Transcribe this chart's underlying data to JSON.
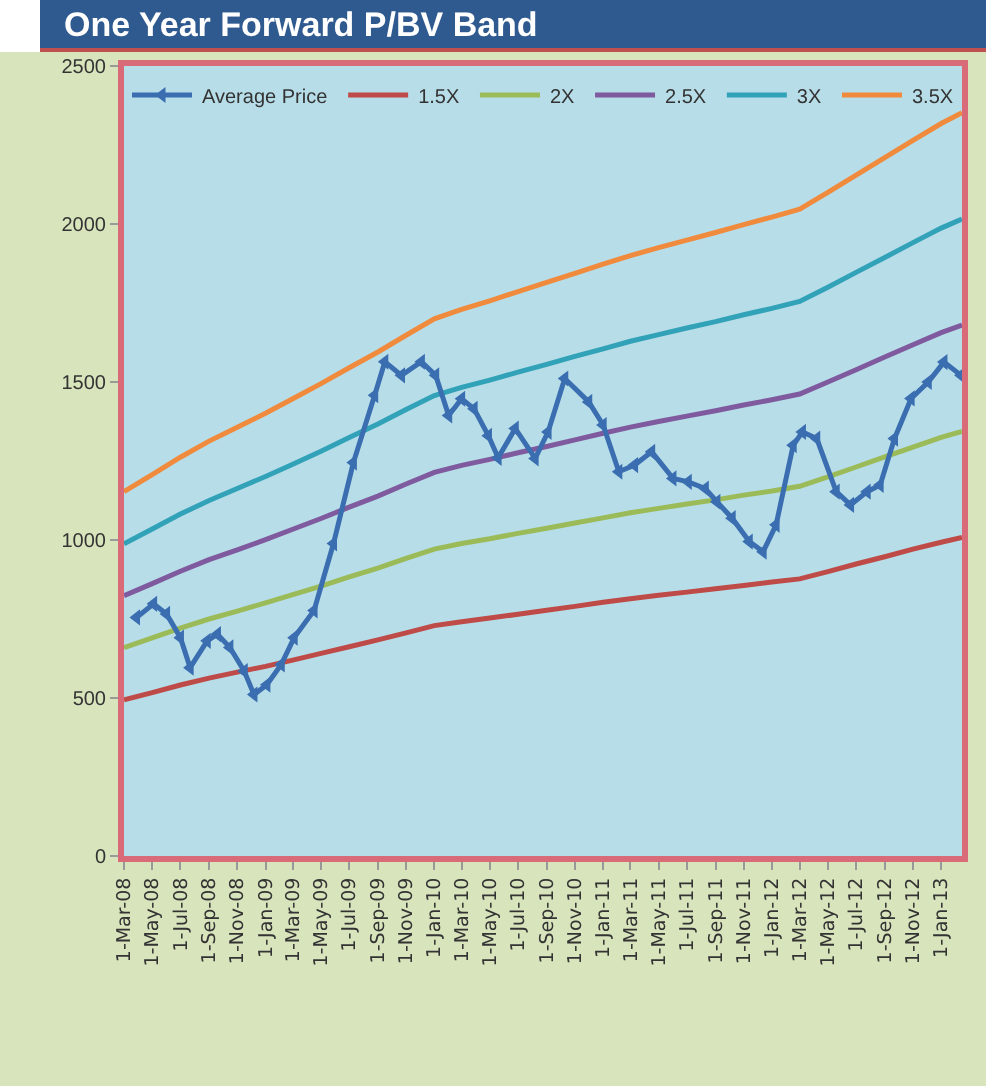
{
  "chart_data": {
    "type": "line",
    "title": "One Year Forward P/BV Band",
    "x": [
      "2008-03-01",
      "2008-05-01",
      "2008-07-01",
      "2008-09-01",
      "2008-11-01",
      "2009-01-01",
      "2009-03-01",
      "2009-05-01",
      "2009-07-01",
      "2009-09-01",
      "2009-11-01",
      "2010-01-01",
      "2010-03-01",
      "2010-05-01",
      "2010-07-01",
      "2010-09-01",
      "2010-11-01",
      "2011-01-01",
      "2011-03-01",
      "2011-05-01",
      "2011-07-01",
      "2011-09-01",
      "2011-11-01",
      "2012-01-01",
      "2012-03-01",
      "2012-05-01",
      "2012-07-01",
      "2012-09-01",
      "2012-11-01",
      "2013-01-01",
      "2013-02-15"
    ],
    "series": [
      {
        "name": "Average Price",
        "color": "#3a6eb0",
        "marker": "triangle",
        "x": [
          "2008-03-28",
          "2008-05-04",
          "2008-06-01",
          "2008-07-01",
          "2008-07-22",
          "2008-08-28",
          "2008-09-19",
          "2008-10-16",
          "2008-11-16",
          "2008-12-07",
          "2009-01-04",
          "2009-02-04",
          "2009-03-04",
          "2009-04-16",
          "2009-05-28",
          "2009-07-10",
          "2009-08-25",
          "2009-09-16",
          "2009-10-22",
          "2009-12-04",
          "2010-01-04",
          "2010-02-01",
          "2010-03-01",
          "2010-03-28",
          "2010-04-28",
          "2010-05-19",
          "2010-06-25",
          "2010-08-07",
          "2010-09-04",
          "2010-10-10",
          "2010-12-01",
          "2011-01-01",
          "2011-02-04",
          "2011-03-10",
          "2011-04-16",
          "2011-06-01",
          "2011-07-04",
          "2011-08-10",
          "2011-09-04",
          "2011-10-07",
          "2011-11-13",
          "2011-12-13",
          "2012-01-10",
          "2012-02-16",
          "2012-03-07",
          "2012-04-07",
          "2012-05-19",
          "2012-06-19",
          "2012-07-25",
          "2012-08-22",
          "2012-09-22",
          "2012-10-28",
          "2012-12-04",
          "2013-01-07",
          "2013-02-13"
        ],
        "values": [
          755,
          798,
          766,
          691,
          596,
          681,
          702,
          660,
          585,
          511,
          542,
          606,
          691,
          777,
          989,
          1245,
          1458,
          1564,
          1521,
          1564,
          1521,
          1394,
          1447,
          1415,
          1330,
          1260,
          1353,
          1258,
          1342,
          1511,
          1437,
          1364,
          1216,
          1237,
          1279,
          1195,
          1184,
          1163,
          1121,
          1069,
          995,
          963,
          1048,
          1300,
          1342,
          1321,
          1153,
          1111,
          1153,
          1174,
          1321,
          1448,
          1500,
          1563,
          1521
        ]
      },
      {
        "name": "1.5X",
        "color": "#be4b48",
        "values": [
          494,
          517,
          541,
          563,
          582,
          600,
          620,
          641,
          662,
          684,
          706,
          729,
          741,
          753,
          765,
          778,
          790,
          803,
          814,
          825,
          835,
          846,
          856,
          867,
          877,
          900,
          924,
          947,
          971,
          993,
          1008
        ]
      },
      {
        "name": "2X",
        "color": "#9bbb59",
        "values": [
          659,
          690,
          721,
          750,
          775,
          801,
          827,
          854,
          883,
          911,
          942,
          971,
          989,
          1004,
          1021,
          1037,
          1054,
          1070,
          1086,
          1100,
          1114,
          1127,
          1142,
          1155,
          1170,
          1200,
          1231,
          1263,
          1294,
          1325,
          1344
        ]
      },
      {
        "name": "2.5X",
        "color": "#7f5a9e",
        "values": [
          824,
          862,
          901,
          938,
          969,
          1001,
          1034,
          1068,
          1104,
          1139,
          1177,
          1214,
          1236,
          1255,
          1276,
          1296,
          1317,
          1338,
          1357,
          1375,
          1392,
          1409,
          1427,
          1444,
          1462,
          1500,
          1539,
          1579,
          1618,
          1656,
          1680
        ]
      },
      {
        "name": "3X",
        "color": "#31a2b8",
        "values": [
          988,
          1035,
          1082,
          1125,
          1163,
          1201,
          1240,
          1281,
          1324,
          1367,
          1413,
          1457,
          1483,
          1506,
          1531,
          1556,
          1581,
          1605,
          1629,
          1650,
          1671,
          1691,
          1713,
          1733,
          1755,
          1800,
          1847,
          1894,
          1941,
          1987,
          2016
        ]
      },
      {
        "name": "3.5X",
        "color": "#f08a3c",
        "values": [
          1153,
          1207,
          1262,
          1313,
          1357,
          1401,
          1447,
          1495,
          1545,
          1595,
          1648,
          1700,
          1730,
          1757,
          1786,
          1815,
          1844,
          1873,
          1900,
          1925,
          1949,
          1973,
          1998,
          2022,
          2047,
          2100,
          2155,
          2210,
          2265,
          2318,
          2352
        ]
      }
    ],
    "xlim": [
      "2008-03-01",
      "2013-02-15"
    ],
    "xticks": [
      {
        "value": "2008-03-01",
        "label": "1-Mar-08"
      },
      {
        "value": "2008-05-01",
        "label": "1-May-08"
      },
      {
        "value": "2008-07-01",
        "label": "1-Jul-08"
      },
      {
        "value": "2008-09-01",
        "label": "1-Sep-08"
      },
      {
        "value": "2008-11-01",
        "label": "1-Nov-08"
      },
      {
        "value": "2009-01-01",
        "label": "1-Jan-09"
      },
      {
        "value": "2009-03-01",
        "label": "1-Mar-09"
      },
      {
        "value": "2009-05-01",
        "label": "1-May-09"
      },
      {
        "value": "2009-07-01",
        "label": "1-Jul-09"
      },
      {
        "value": "2009-09-01",
        "label": "1-Sep-09"
      },
      {
        "value": "2009-11-01",
        "label": "1-Nov-09"
      },
      {
        "value": "2010-01-01",
        "label": "1-Jan-10"
      },
      {
        "value": "2010-03-01",
        "label": "1-Mar-10"
      },
      {
        "value": "2010-05-01",
        "label": "1-May-10"
      },
      {
        "value": "2010-07-01",
        "label": "1-Jul-10"
      },
      {
        "value": "2010-09-01",
        "label": "1-Sep-10"
      },
      {
        "value": "2010-11-01",
        "label": "1-Nov-10"
      },
      {
        "value": "2011-01-01",
        "label": "1-Jan-11"
      },
      {
        "value": "2011-03-01",
        "label": "1-Mar-11"
      },
      {
        "value": "2011-05-01",
        "label": "1-May-11"
      },
      {
        "value": "2011-07-01",
        "label": "1-Jul-11"
      },
      {
        "value": "2011-09-01",
        "label": "1-Sep-11"
      },
      {
        "value": "2011-11-01",
        "label": "1-Nov-11"
      },
      {
        "value": "2012-01-01",
        "label": "1-Jan-12"
      },
      {
        "value": "2012-03-01",
        "label": "1-Mar-12"
      },
      {
        "value": "2012-05-01",
        "label": "1-May-12"
      },
      {
        "value": "2012-07-01",
        "label": "1-Jul-12"
      },
      {
        "value": "2012-09-01",
        "label": "1-Sep-12"
      },
      {
        "value": "2012-11-01",
        "label": "1-Nov-12"
      },
      {
        "value": "2013-01-01",
        "label": "1-Jan-13"
      }
    ],
    "ylim": [
      0,
      2500
    ],
    "yticks": [
      0,
      500,
      1000,
      1500,
      2000,
      2500
    ],
    "grid": false,
    "legend": "top",
    "line_style": "solid"
  }
}
